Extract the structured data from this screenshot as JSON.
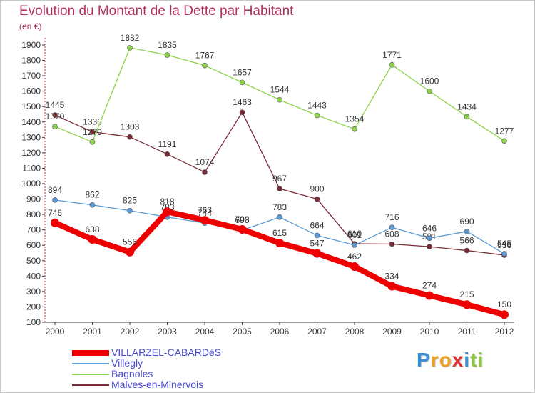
{
  "chart_data": {
    "type": "line",
    "title": "Evolution du Montant de la Dette par Habitant",
    "subtitle": "(en €)",
    "xlabel": "",
    "ylabel": "",
    "ylim": [
      100,
      1900
    ],
    "yticks": [
      100,
      200,
      300,
      400,
      500,
      600,
      700,
      800,
      900,
      1000,
      1100,
      1200,
      1300,
      1400,
      1500,
      1600,
      1700,
      1800,
      1900
    ],
    "grid": false,
    "legend_position": "bottom-left",
    "x": [
      "2000",
      "2001",
      "2002",
      "2003",
      "2004",
      "2005",
      "2006",
      "2007",
      "2008",
      "2009",
      "2010",
      "2011",
      "2012"
    ],
    "series": [
      {
        "name": "VILLARZEL-CABARDèS",
        "color": "#ee0000",
        "values": [
          746,
          638,
          556,
          818,
          763,
          703,
          615,
          547,
          462,
          334,
          274,
          215,
          150
        ]
      },
      {
        "name": "Villegly",
        "color": "#5b9bd5",
        "values": [
          894,
          862,
          825,
          783,
          744,
          698,
          783,
          664,
          601,
          716,
          646,
          690,
          545
        ]
      },
      {
        "name": "Bagnoles",
        "color": "#8ed44a",
        "values": [
          1370,
          1270,
          1882,
          1835,
          1767,
          1657,
          1544,
          1443,
          1354,
          1771,
          1600,
          1434,
          1277
        ]
      },
      {
        "name": "Malves-en-Minervois",
        "color": "#7a2b35",
        "values": [
          1445,
          1336,
          1303,
          1191,
          1074,
          1463,
          967,
          900,
          610,
          608,
          591,
          566,
          536
        ]
      }
    ]
  },
  "logo": {
    "letters": [
      "P",
      "r",
      "o",
      "x",
      "i",
      "t",
      "i"
    ],
    "colors": [
      "#3a8fd8",
      "#f0a020",
      "#f0a020",
      "#e03030",
      "#3a8fd8",
      "#8cc63f",
      "#8cc63f"
    ]
  }
}
